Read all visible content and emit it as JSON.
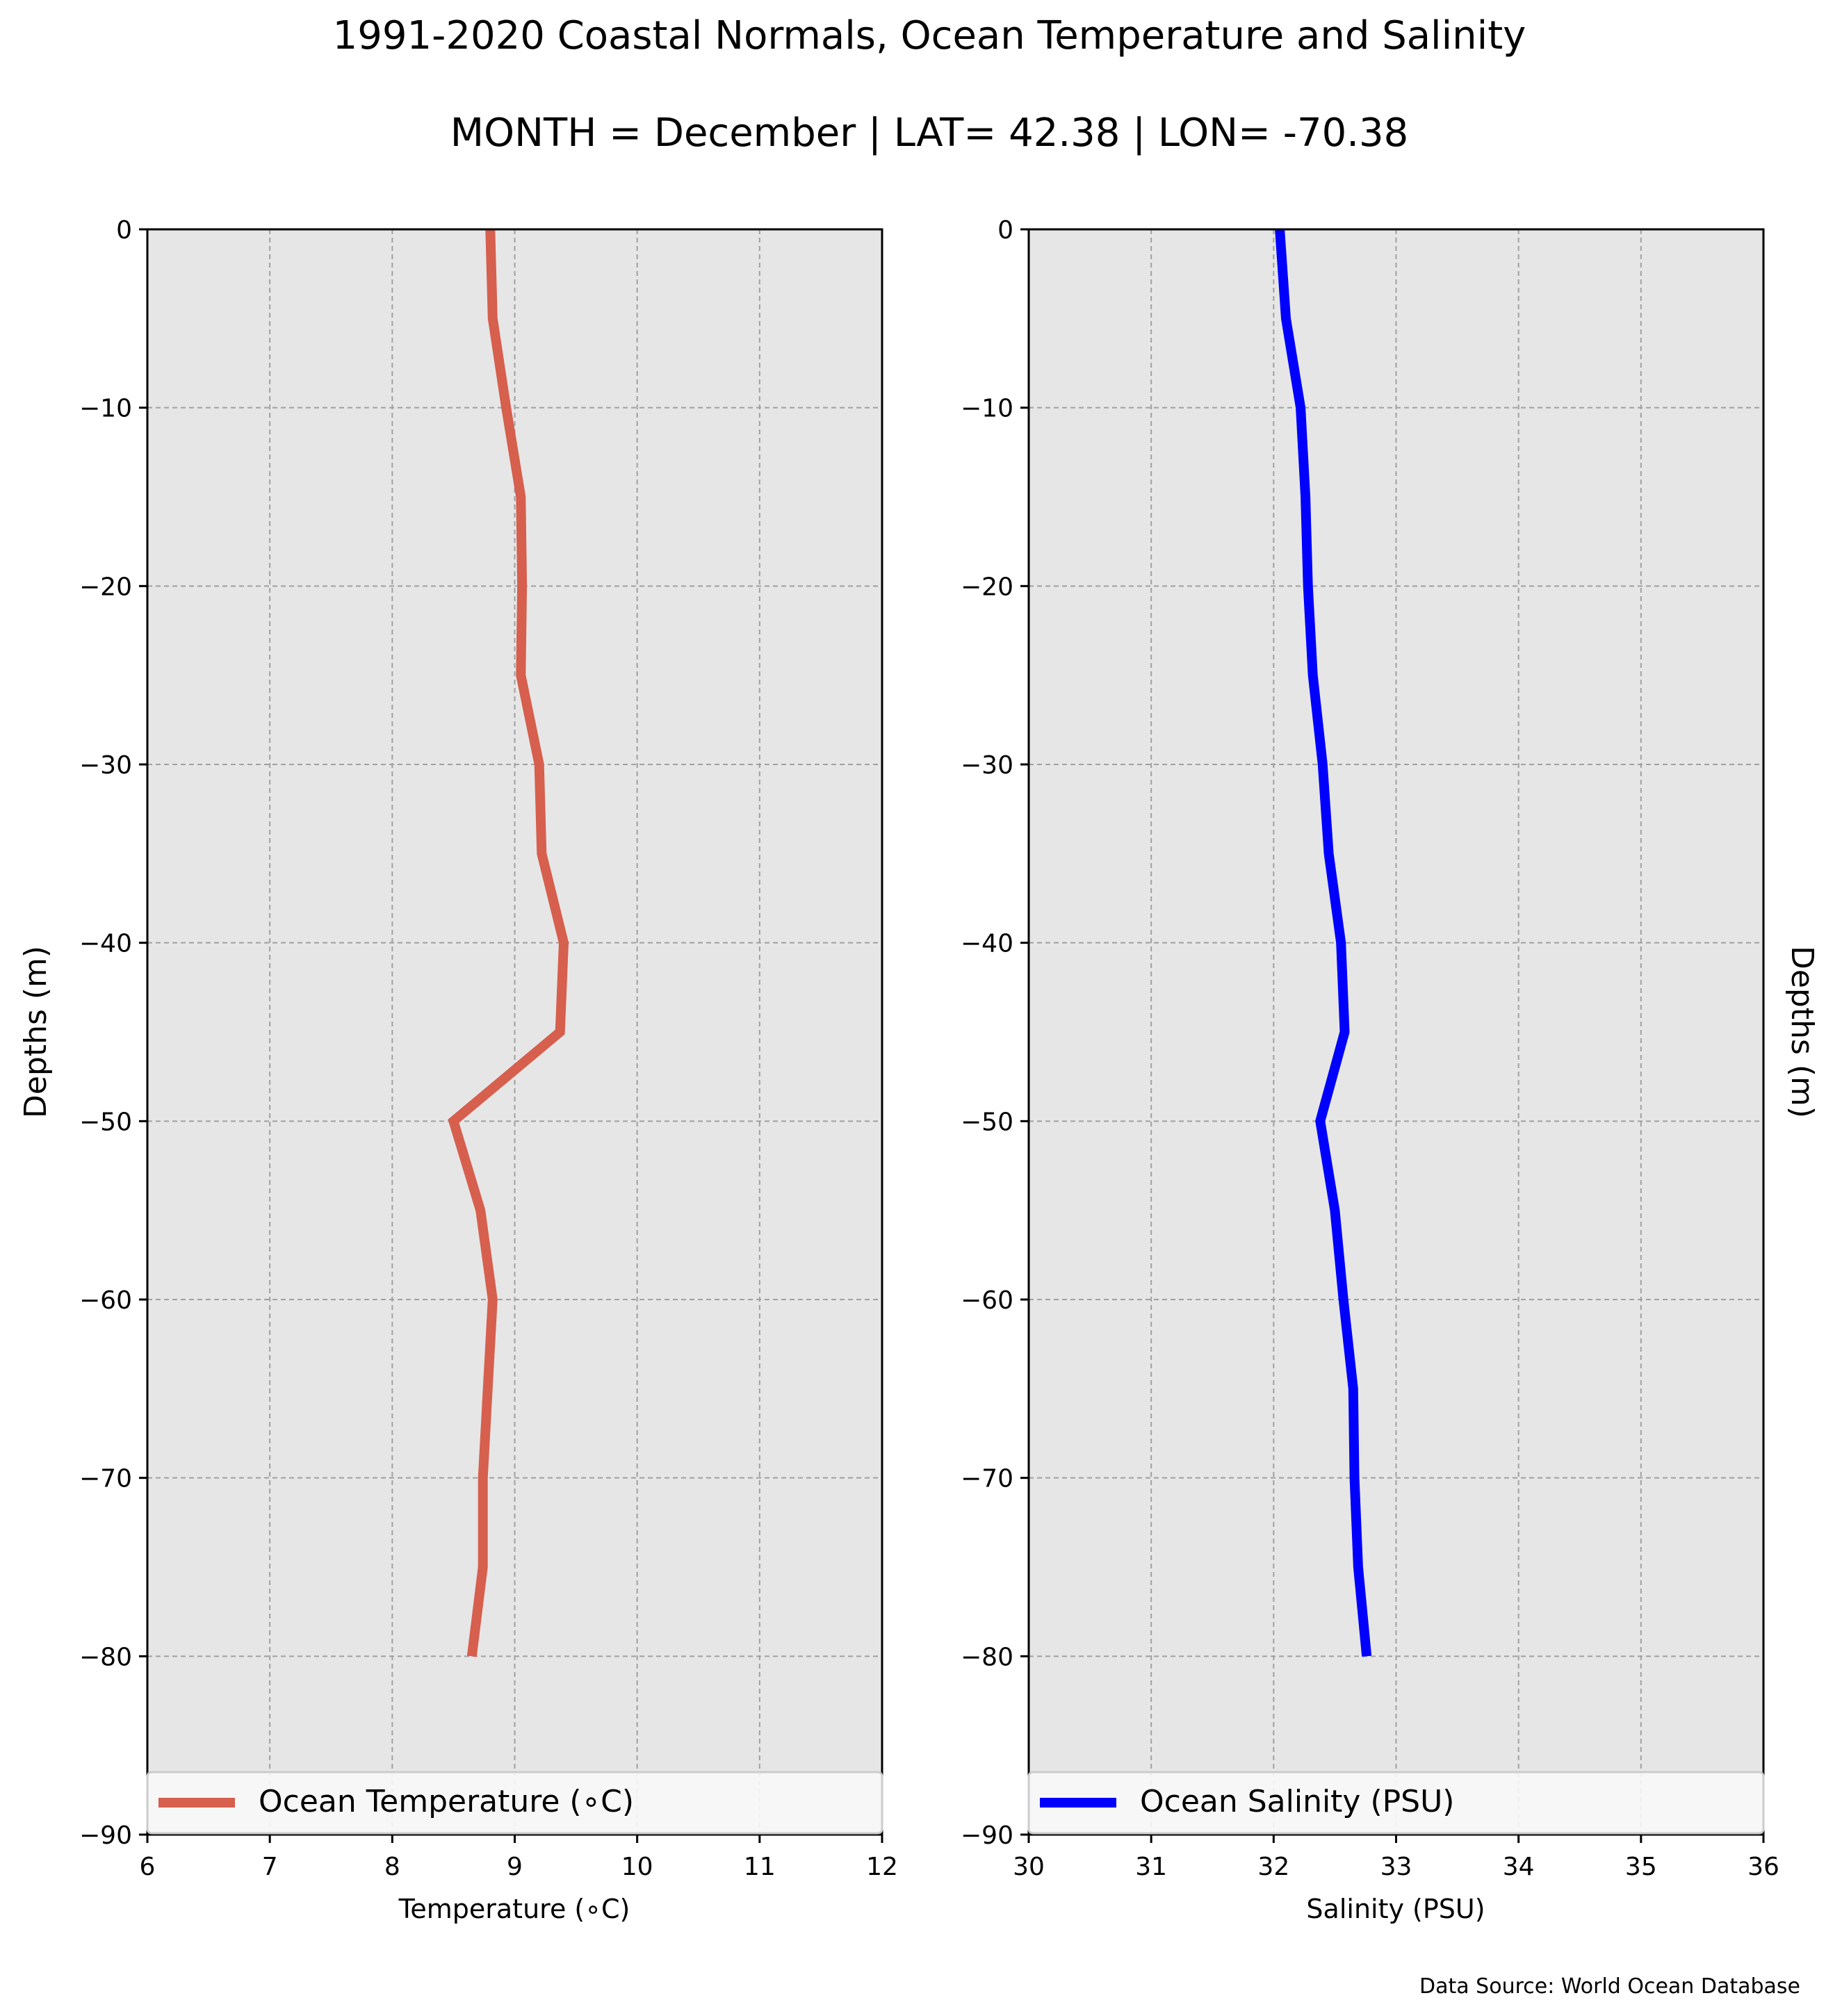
{
  "title": "1991-2020 Coastal Normals, Ocean Temperature and Salinity",
  "subtitle": "MONTH = December | LAT= 42.38 | LON= -70.38",
  "source_note": "Data Source: World Ocean Database",
  "colors": {
    "panel_bg": "#e6e6e6",
    "grid": "#a0a0a0",
    "temperature_line": "#d65f4e",
    "salinity_line": "#0000ff"
  },
  "chart_data": [
    {
      "type": "line",
      "xlabel": "Temperature ($^\\circ$C)",
      "xlabel_display": "Temperature (∘C)",
      "ylabel": "Depths (m)",
      "xlim": [
        6,
        12
      ],
      "ylim": [
        -90,
        0
      ],
      "xticks": [
        "6",
        "7",
        "8",
        "9",
        "10",
        "11",
        "12"
      ],
      "yticks": [
        "0",
        "−10",
        "−20",
        "−30",
        "−40",
        "−50",
        "−60",
        "−70",
        "−80",
        "−90"
      ],
      "grid": true,
      "legend_position": "lower center",
      "series": [
        {
          "name": "Ocean Temperature (∘C)",
          "color": "#d65f4e",
          "x": [
            8.8,
            8.82,
            8.93,
            9.05,
            9.06,
            9.05,
            9.2,
            9.22,
            9.4,
            9.37,
            8.5,
            8.72,
            8.82,
            8.78,
            8.74,
            8.74,
            8.65
          ],
          "y": [
            0,
            -5,
            -10,
            -15,
            -20,
            -25,
            -30,
            -35,
            -40,
            -45,
            -50,
            -55,
            -60,
            -65,
            -70,
            -75,
            -80
          ]
        }
      ]
    },
    {
      "type": "line",
      "xlabel": "Salinity (PSU)",
      "ylabel": "Depths (m)",
      "xlim": [
        30,
        36
      ],
      "ylim": [
        -90,
        0
      ],
      "xticks": [
        "30",
        "31",
        "32",
        "33",
        "34",
        "35",
        "36"
      ],
      "yticks": [
        "0",
        "−10",
        "−20",
        "−30",
        "−40",
        "−50",
        "−60",
        "−70",
        "−80",
        "−90"
      ],
      "grid": true,
      "legend_position": "lower center",
      "series": [
        {
          "name": "Ocean Salinity (PSU)",
          "color": "#0000ff",
          "x": [
            32.05,
            32.1,
            32.22,
            32.26,
            32.28,
            32.32,
            32.4,
            32.45,
            32.55,
            32.58,
            32.38,
            32.5,
            32.57,
            32.65,
            32.66,
            32.69,
            32.76
          ],
          "y": [
            0,
            -5,
            -10,
            -15,
            -20,
            -25,
            -30,
            -35,
            -40,
            -45,
            -50,
            -55,
            -60,
            -65,
            -70,
            -75,
            -80
          ]
        }
      ]
    }
  ]
}
